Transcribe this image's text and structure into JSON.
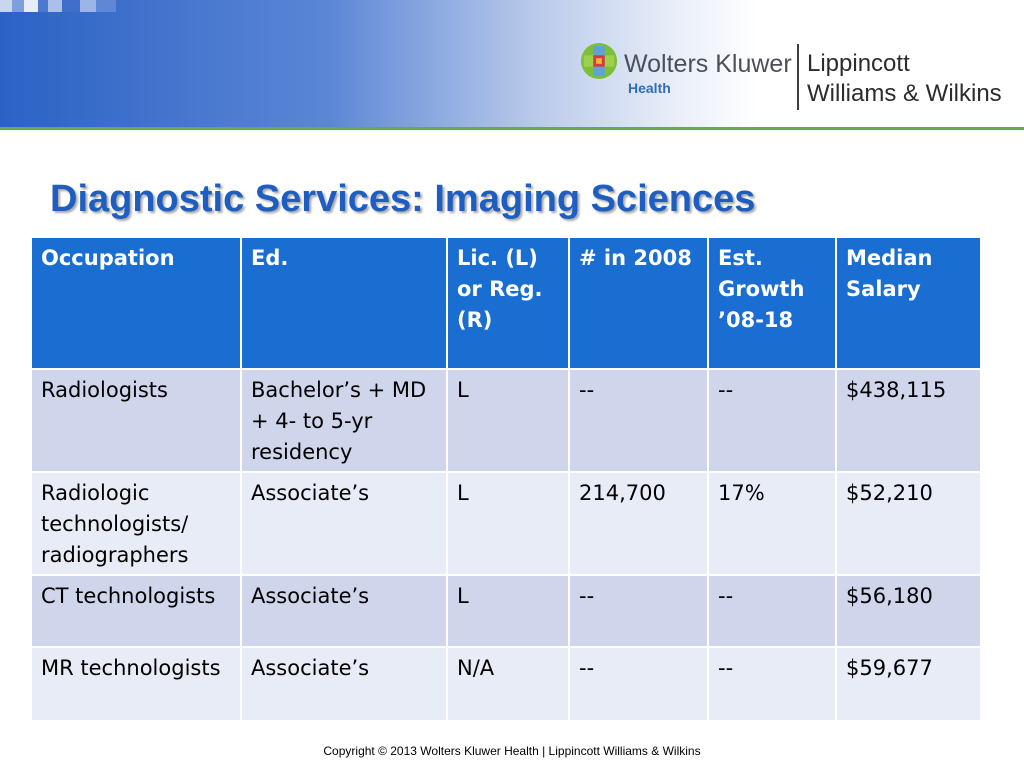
{
  "brand": {
    "wk_name": "Wolters Kluwer",
    "wk_sub": "Health",
    "lww_line1": "Lippincott",
    "lww_line2": "Williams & Wilkins",
    "accent_blue": "#1a6dd1",
    "title_blue": "#1e5ec1",
    "rule_green": "#6aa84f"
  },
  "slide": {
    "title": "Diagnostic Services: Imaging Sciences"
  },
  "table": {
    "headers": [
      "Occupation",
      "Ed.",
      "Lic. (L) or Reg. (R)",
      "# in 2008",
      "Est. Growth ’08-18",
      "Median Salary"
    ],
    "rows": [
      [
        "Radiologists",
        "Bachelor’s + MD + 4- to 5-yr residency",
        "L",
        "--",
        "--",
        "$438,115"
      ],
      [
        "Radiologic technologists/ radiographers",
        "Associate’s",
        "L",
        "214,700",
        "17%",
        "$52,210"
      ],
      [
        "CT technologists",
        "Associate’s",
        "L",
        "--",
        "--",
        "$56,180"
      ],
      [
        "MR technologists",
        "Associate’s",
        "N/A",
        "--",
        "--",
        "$59,677"
      ]
    ]
  },
  "footer": {
    "copyright": "Copyright © 2013 Wolters Kluwer Health | Lippincott Williams & Wilkins"
  }
}
